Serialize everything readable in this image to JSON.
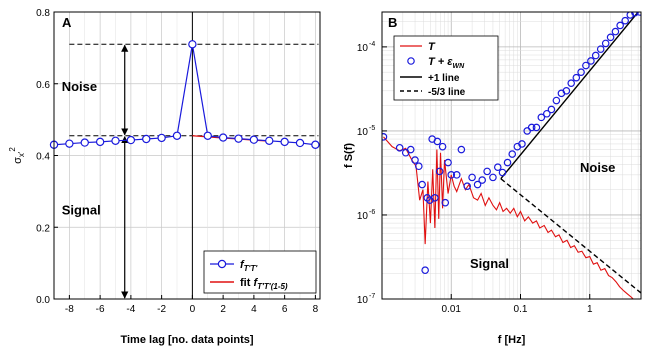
{
  "chart_data": [
    {
      "panel_label": "A",
      "type": "line",
      "xlabel": "Time lag [no. data points]",
      "ylabel": "σx'2",
      "xlim": [
        -9,
        8.3
      ],
      "ylim": [
        0.0,
        0.8
      ],
      "xticks": [
        -8,
        -6,
        -4,
        -2,
        0,
        2,
        4,
        6,
        8
      ],
      "xtick_labels": [
        "-8",
        "-6",
        "-4",
        "-2",
        "0",
        "2",
        "4",
        "6",
        "8"
      ],
      "yticks": [
        0.0,
        0.2,
        0.4,
        0.6,
        0.8
      ],
      "ytick_labels": [
        "0.0",
        "0.2",
        "0.4",
        "0.6",
        "0.8"
      ],
      "annotations": {
        "noise": "Noise",
        "signal": "Signal"
      },
      "reference_levels": {
        "peak": 0.71,
        "fit_zero": 0.455
      },
      "legend": {
        "position": "bottom-right",
        "entries": [
          "fT'T'",
          "fit fT'T'(1-5)"
        ]
      },
      "series": [
        {
          "name": "fT'T'",
          "color": "#1a1adc",
          "x": [
            -9,
            -8,
            -7,
            -6,
            -5,
            -4,
            -3,
            -2,
            -1,
            0,
            1,
            2,
            3,
            4,
            5,
            6,
            7,
            8
          ],
          "values": [
            0.43,
            0.433,
            0.436,
            0.438,
            0.441,
            0.443,
            0.446,
            0.449,
            0.455,
            0.71,
            0.455,
            0.45,
            0.447,
            0.444,
            0.441,
            0.438,
            0.435,
            0.43
          ]
        },
        {
          "name": "fit fT'T'(1-5)",
          "color": "#e01010",
          "x": [
            0,
            1,
            2,
            3,
            4,
            5
          ],
          "values": [
            0.455,
            0.452,
            0.449,
            0.446,
            0.443,
            0.44
          ]
        }
      ]
    },
    {
      "panel_label": "B",
      "type": "line",
      "xscale": "log",
      "yscale": "log",
      "xlabel": "f [Hz]",
      "ylabel": "f S(f)",
      "xlim": [
        0.001,
        5.5
      ],
      "ylim": [
        1e-07,
        0.00026
      ],
      "xtick_values": [
        0.01,
        0.1,
        1
      ],
      "xtick_labels": [
        "0.01",
        "0.1",
        "1"
      ],
      "ytick_values": [
        1e-07,
        1e-06,
        1e-05,
        0.0001
      ],
      "ytick_labels": [
        "10",
        "10",
        "10",
        "10"
      ],
      "ytick_exponents": [
        "-7",
        "-6",
        "-5",
        "-4"
      ],
      "annotations": {
        "noise": "Noise",
        "signal": "Signal"
      },
      "legend": {
        "position": "top-left",
        "entries": [
          "T",
          "T + εWN",
          "+1 line",
          "-5/3 line"
        ]
      },
      "series": [
        {
          "name": "T",
          "color": "#e01010",
          "x": [
            0.00105,
            0.0014,
            0.0018,
            0.0022,
            0.0027,
            0.0031,
            0.0035,
            0.0039,
            0.0042,
            0.0046,
            0.005,
            0.0054,
            0.0058,
            0.0062,
            0.0066,
            0.007,
            0.0075,
            0.008,
            0.009,
            0.01,
            0.011,
            0.012,
            0.014,
            0.016,
            0.018,
            0.021,
            0.024,
            0.027,
            0.031,
            0.035,
            0.04,
            0.045,
            0.05,
            0.056,
            0.063,
            0.071,
            0.08,
            0.09,
            0.1,
            0.115,
            0.13,
            0.15,
            0.17,
            0.19,
            0.22,
            0.25,
            0.28,
            0.32,
            0.36,
            0.41,
            0.47,
            0.53,
            0.6,
            0.68,
            0.77,
            0.88,
            1.0,
            1.13,
            1.28,
            1.45,
            1.65,
            1.87,
            2.1,
            2.4,
            2.7,
            3.1,
            3.5,
            4.0,
            4.5,
            5.0
          ],
          "values": [
            8.5e-06,
            6.5e-06,
            5.8e-06,
            6.2e-06,
            4.5e-06,
            3.8e-06,
            1.5e-06,
            2e-06,
            4.5e-07,
            2.5e-06,
            8e-07,
            3.5e-06,
            7e-07,
            6e-06,
            9e-07,
            5.5e-06,
            1.2e-06,
            4.5e-06,
            1.8e-06,
            3e-06,
            2.2e-06,
            1.9e-06,
            2.7e-06,
            2e-06,
            2.3e-06,
            1.6e-06,
            1.5e-06,
            1.8e-06,
            1.3e-06,
            1.6e-06,
            1.3e-06,
            1.15e-06,
            1.4e-06,
            1.1e-06,
            1.2e-06,
            1.05e-06,
            1.2e-06,
            9.5e-07,
            1.1e-06,
            8.5e-07,
            9.5e-07,
            8e-07,
            8.5e-07,
            7e-07,
            7.5e-07,
            6.2e-07,
            6.6e-07,
            5.5e-07,
            5.8e-07,
            4.7e-07,
            5e-07,
            4.1e-07,
            4.3e-07,
            3.6e-07,
            3.7e-07,
            3.1e-07,
            3.2e-07,
            2.6e-07,
            2.7e-07,
            2.2e-07,
            2.3e-07,
            1.9e-07,
            1.8e-07,
            1.6e-07,
            1.4e-07,
            1.25e-07,
            1.15e-07,
            1.05e-07,
            9.5e-08,
            9e-08
          ]
        },
        {
          "name": "T + εWN",
          "color": "#1a1adc",
          "marker": "circle",
          "x": [
            0.00105,
            0.0018,
            0.0022,
            0.0026,
            0.003,
            0.0034,
            0.0038,
            0.0042,
            0.0045,
            0.0049,
            0.0053,
            0.0058,
            0.0063,
            0.0068,
            0.0075,
            0.0082,
            0.009,
            0.01,
            0.012,
            0.014,
            0.017,
            0.02,
            0.024,
            0.028,
            0.033,
            0.04,
            0.047,
            0.055,
            0.065,
            0.076,
            0.09,
            0.105,
            0.125,
            0.145,
            0.17,
            0.2,
            0.24,
            0.28,
            0.33,
            0.39,
            0.46,
            0.54,
            0.64,
            0.75,
            0.88,
            1.04,
            1.22,
            1.44,
            1.7,
            2.0,
            2.35,
            2.75,
            3.25,
            3.85,
            4.5,
            5.3
          ],
          "values": [
            8.5e-06,
            6.3e-06,
            5.5e-06,
            6e-06,
            4.5e-06,
            3.8e-06,
            2.3e-06,
            2.2e-07,
            1.6e-06,
            1.5e-06,
            8e-06,
            1.6e-06,
            7.5e-06,
            3.3e-06,
            6.5e-06,
            1.4e-06,
            4.2e-06,
            3e-06,
            3e-06,
            6e-06,
            2.2e-06,
            2.8e-06,
            2.3e-06,
            2.6e-06,
            3.3e-06,
            2.8e-06,
            3.7e-06,
            3.2e-06,
            4.2e-06,
            5.3e-06,
            6.5e-06,
            7e-06,
            1e-05,
            1.1e-05,
            1.1e-05,
            1.45e-05,
            1.6e-05,
            1.8e-05,
            2.3e-05,
            2.8e-05,
            3e-05,
            3.7e-05,
            4.3e-05,
            5e-05,
            6e-05,
            6.8e-05,
            7.9e-05,
            9.4e-05,
            0.00011,
            0.00013,
            0.000152,
            0.00018,
            0.000205,
            0.00024,
            0.000255,
            0.00026
          ]
        },
        {
          "name": "+1 line",
          "color": "#000000",
          "style": "solid",
          "x": [
            0.052,
            5.5
          ],
          "values": [
            2.7e-06,
            0.000286
          ]
        },
        {
          "name": "-5/3 line",
          "color": "#000000",
          "style": "dashed",
          "x": [
            0.052,
            5.5
          ],
          "values": [
            2.7e-06,
            1.18e-07
          ]
        }
      ]
    }
  ]
}
